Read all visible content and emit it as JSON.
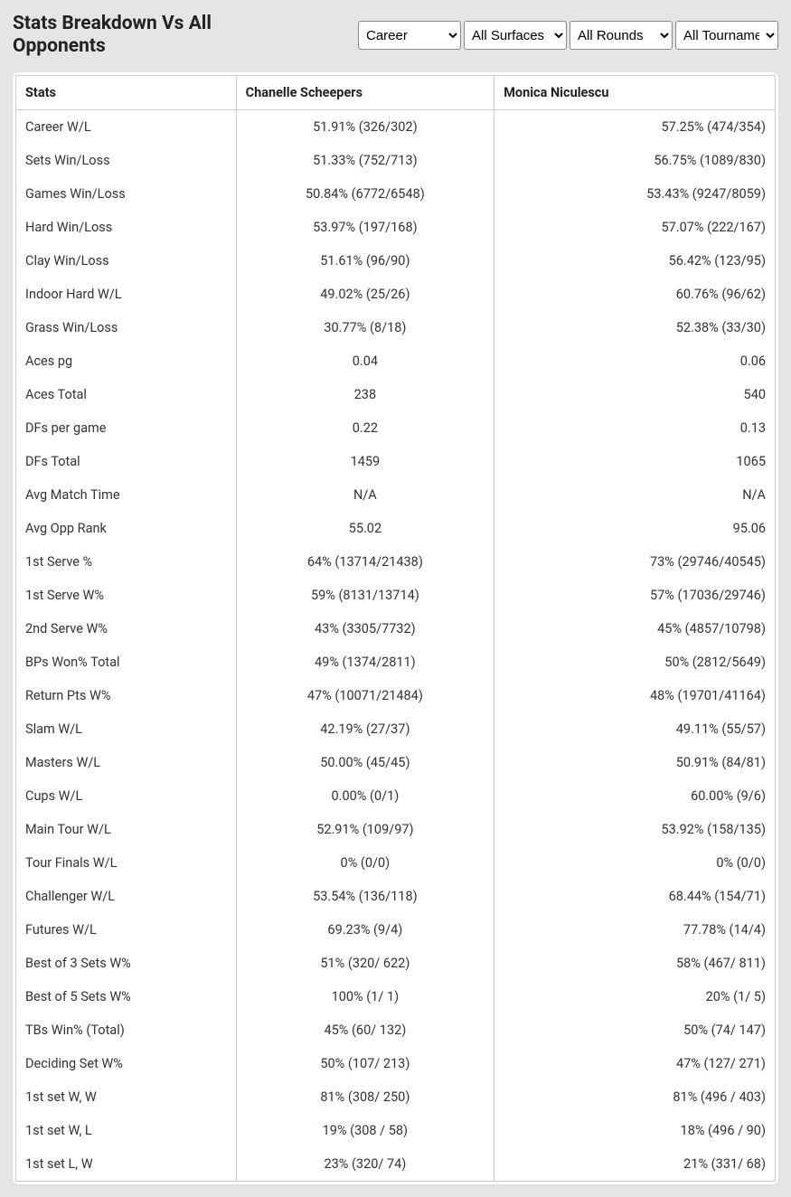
{
  "header": {
    "title": "Stats Breakdown Vs All Opponents",
    "filters": {
      "career": "Career",
      "surface": "All Surfaces",
      "round": "All Rounds",
      "tournament": "All Tournaments"
    }
  },
  "table": {
    "columns": {
      "stats": "Stats",
      "player1": "Chanelle Scheepers",
      "player2": "Monica Niculescu"
    },
    "rows": [
      {
        "label": "Career W/L",
        "p1": "51.91% (326/302)",
        "p2": "57.25% (474/354)"
      },
      {
        "label": "Sets Win/Loss",
        "p1": "51.33% (752/713)",
        "p2": "56.75% (1089/830)"
      },
      {
        "label": "Games Win/Loss",
        "p1": "50.84% (6772/6548)",
        "p2": "53.43% (9247/8059)"
      },
      {
        "label": "Hard Win/Loss",
        "p1": "53.97% (197/168)",
        "p2": "57.07% (222/167)"
      },
      {
        "label": "Clay Win/Loss",
        "p1": "51.61% (96/90)",
        "p2": "56.42% (123/95)"
      },
      {
        "label": "Indoor Hard W/L",
        "p1": "49.02% (25/26)",
        "p2": "60.76% (96/62)"
      },
      {
        "label": "Grass Win/Loss",
        "p1": "30.77% (8/18)",
        "p2": "52.38% (33/30)"
      },
      {
        "label": "Aces pg",
        "p1": "0.04",
        "p2": "0.06"
      },
      {
        "label": "Aces Total",
        "p1": "238",
        "p2": "540"
      },
      {
        "label": "DFs per game",
        "p1": "0.22",
        "p2": "0.13"
      },
      {
        "label": "DFs Total",
        "p1": "1459",
        "p2": "1065"
      },
      {
        "label": "Avg Match Time",
        "p1": "N/A",
        "p2": "N/A"
      },
      {
        "label": "Avg Opp Rank",
        "p1": "55.02",
        "p2": "95.06"
      },
      {
        "label": "1st Serve %",
        "p1": "64% (13714/21438)",
        "p2": "73% (29746/40545)"
      },
      {
        "label": "1st Serve W%",
        "p1": "59% (8131/13714)",
        "p2": "57% (17036/29746)"
      },
      {
        "label": "2nd Serve W%",
        "p1": "43% (3305/7732)",
        "p2": "45% (4857/10798)"
      },
      {
        "label": "BPs Won% Total",
        "p1": "49% (1374/2811)",
        "p2": "50% (2812/5649)"
      },
      {
        "label": "Return Pts W%",
        "p1": "47% (10071/21484)",
        "p2": "48% (19701/41164)"
      },
      {
        "label": "Slam W/L",
        "p1": "42.19% (27/37)",
        "p2": "49.11% (55/57)"
      },
      {
        "label": "Masters W/L",
        "p1": "50.00% (45/45)",
        "p2": "50.91% (84/81)"
      },
      {
        "label": "Cups W/L",
        "p1": "0.00% (0/1)",
        "p2": "60.00% (9/6)"
      },
      {
        "label": "Main Tour W/L",
        "p1": "52.91% (109/97)",
        "p2": "53.92% (158/135)"
      },
      {
        "label": "Tour Finals W/L",
        "p1": "0% (0/0)",
        "p2": "0% (0/0)"
      },
      {
        "label": "Challenger W/L",
        "p1": "53.54% (136/118)",
        "p2": "68.44% (154/71)"
      },
      {
        "label": "Futures W/L",
        "p1": "69.23% (9/4)",
        "p2": "77.78% (14/4)"
      },
      {
        "label": "Best of 3 Sets W%",
        "p1": "51% (320/ 622)",
        "p2": "58% (467/ 811)"
      },
      {
        "label": "Best of 5 Sets W%",
        "p1": "100% (1/ 1)",
        "p2": "20% (1/ 5)"
      },
      {
        "label": "TBs Win% (Total)",
        "p1": "45% (60/ 132)",
        "p2": "50% (74/ 147)"
      },
      {
        "label": "Deciding Set W%",
        "p1": "50% (107/ 213)",
        "p2": "47% (127/ 271)"
      },
      {
        "label": "1st set W, W",
        "p1": "81% (308/ 250)",
        "p2": "81% (496 / 403)"
      },
      {
        "label": "1st set W, L",
        "p1": "19% (308 / 58)",
        "p2": "18% (496 / 90)"
      },
      {
        "label": "1st set L, W",
        "p1": "23% (320/ 74)",
        "p2": "21% (331/ 68)"
      }
    ]
  }
}
